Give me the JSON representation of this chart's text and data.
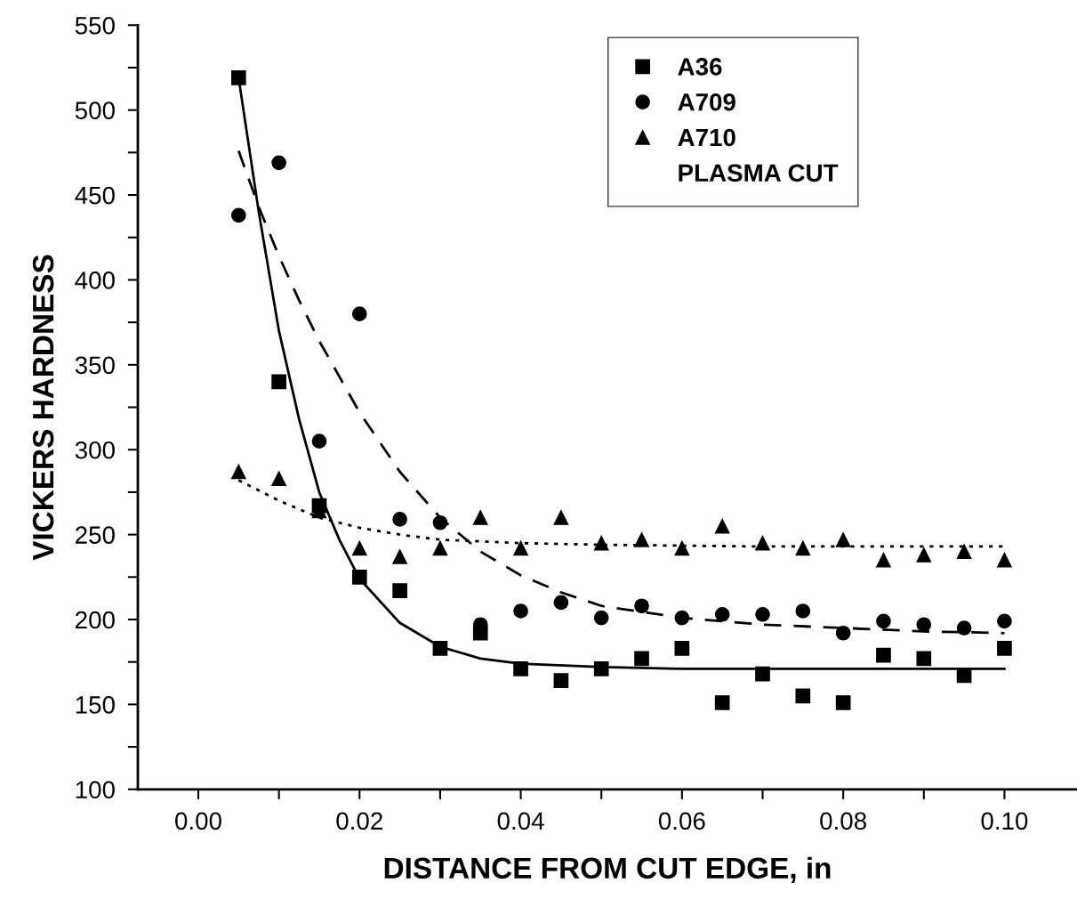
{
  "chart_data": {
    "type": "scatter",
    "xlabel": "DISTANCE FROM CUT EDGE, in",
    "ylabel": "VICKERS HARDNESS",
    "xlim": [
      -0.0075,
      0.109
    ],
    "ylim": [
      100,
      550
    ],
    "xticks": [
      {
        "value": 0.0,
        "label": "0.00"
      },
      {
        "value": 0.01,
        "label": null
      },
      {
        "value": 0.02,
        "label": "0.02"
      },
      {
        "value": 0.03,
        "label": null
      },
      {
        "value": 0.04,
        "label": "0.04"
      },
      {
        "value": 0.05,
        "label": null
      },
      {
        "value": 0.06,
        "label": "0.06"
      },
      {
        "value": 0.07,
        "label": null
      },
      {
        "value": 0.08,
        "label": "0.08"
      },
      {
        "value": 0.09,
        "label": null
      },
      {
        "value": 0.1,
        "label": "0.10"
      }
    ],
    "yticks": [
      100,
      {
        "value": 125,
        "label": null
      },
      150,
      {
        "value": 175,
        "label": null
      },
      200,
      {
        "value": 225,
        "label": null
      },
      250,
      {
        "value": 275,
        "label": null
      },
      300,
      {
        "value": 325,
        "label": null
      },
      350,
      {
        "value": 375,
        "label": null
      },
      400,
      {
        "value": 425,
        "label": null
      },
      450,
      {
        "value": 475,
        "label": null
      },
      500,
      {
        "value": 525,
        "label": null
      },
      550
    ],
    "grid": false,
    "legend": "top right",
    "annotations": [
      "PLASMA CUT"
    ],
    "series": [
      {
        "name": "A36",
        "color": "#000000",
        "marker": "square",
        "x": [
          0.005,
          0.01,
          0.015,
          0.02,
          0.025,
          0.03,
          0.035,
          0.04,
          0.045,
          0.05,
          0.055,
          0.06,
          0.065,
          0.07,
          0.075,
          0.08,
          0.085,
          0.09,
          0.095,
          0.1
        ],
        "values": [
          519,
          340,
          267,
          225,
          217,
          183,
          192,
          171,
          164,
          171,
          177,
          183,
          151,
          168,
          155,
          151,
          179,
          177,
          167,
          183
        ]
      },
      {
        "name": "A709",
        "color": "#000000",
        "marker": "circle",
        "x": [
          0.005,
          0.01,
          0.015,
          0.02,
          0.025,
          0.03,
          0.035,
          0.04,
          0.045,
          0.05,
          0.055,
          0.06,
          0.065,
          0.07,
          0.075,
          0.08,
          0.085,
          0.09,
          0.095,
          0.1
        ],
        "values": [
          438,
          469,
          305,
          380,
          259,
          257,
          197,
          205,
          210,
          201,
          208,
          201,
          203,
          203,
          205,
          192,
          199,
          197,
          195,
          199
        ]
      },
      {
        "name": "A710",
        "color": "#000000",
        "marker": "triangle",
        "x": [
          0.005,
          0.01,
          0.015,
          0.02,
          0.025,
          0.03,
          0.035,
          0.04,
          0.045,
          0.05,
          0.055,
          0.06,
          0.065,
          0.07,
          0.075,
          0.08,
          0.085,
          0.09,
          0.095,
          0.1
        ],
        "values": [
          287,
          283,
          264,
          242,
          237,
          242,
          260,
          242,
          260,
          245,
          247,
          242,
          255,
          245,
          242,
          247,
          235,
          238,
          240,
          235
        ]
      },
      {
        "type": "line",
        "color": "#000000",
        "line_style": "solid",
        "x": [
          0.005,
          0.0075,
          0.01,
          0.0125,
          0.015,
          0.0175,
          0.02,
          0.025,
          0.03,
          0.035,
          0.04,
          0.05,
          0.06,
          0.08,
          0.1
        ],
        "values": [
          519,
          440,
          370,
          318,
          275,
          247,
          224,
          198,
          184,
          177,
          174,
          172,
          171,
          171,
          171
        ]
      },
      {
        "type": "line",
        "color": "#000000",
        "line_style": "dashed",
        "x": [
          0.005,
          0.0075,
          0.01,
          0.0125,
          0.015,
          0.0175,
          0.02,
          0.025,
          0.03,
          0.035,
          0.04,
          0.045,
          0.05,
          0.06,
          0.07,
          0.08,
          0.09,
          0.1
        ],
        "values": [
          476,
          443,
          414,
          388,
          364,
          343,
          322,
          287,
          260,
          240,
          226,
          216,
          208,
          201,
          197,
          195,
          193,
          192
        ]
      },
      {
        "type": "line",
        "color": "#000000",
        "line_style": "dotted",
        "x": [
          0.005,
          0.01,
          0.015,
          0.02,
          0.025,
          0.03,
          0.04,
          0.05,
          0.07,
          0.1
        ],
        "values": [
          282,
          270,
          260,
          254,
          250,
          247,
          245,
          244,
          243,
          243
        ]
      }
    ]
  }
}
